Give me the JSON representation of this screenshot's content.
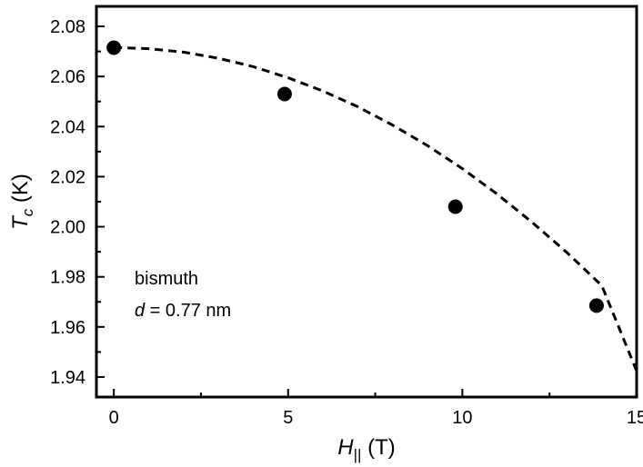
{
  "chart_data": {
    "type": "scatter",
    "x_axis": {
      "label_symbol": "H",
      "label_subscript": "||",
      "label_unit": " (T)",
      "range": [
        -0.5,
        15
      ],
      "ticks": [
        0,
        5,
        10,
        15
      ],
      "tick_labels": [
        "0",
        "5",
        "10",
        "15"
      ]
    },
    "y_axis": {
      "label_symbol": "T",
      "label_subscript": "c",
      "label_unit": " (K)",
      "range": [
        1.932,
        2.088
      ],
      "ticks": [
        1.94,
        1.96,
        1.98,
        2.0,
        2.02,
        2.04,
        2.06,
        2.08
      ],
      "tick_labels": [
        "1.94",
        "1.96",
        "1.98",
        "2.00",
        "2.02",
        "2.04",
        "2.06",
        "2.08"
      ]
    },
    "points": {
      "x": [
        0,
        4.9,
        9.8,
        13.85
      ],
      "y": [
        2.0715,
        2.053,
        2.008,
        1.9685
      ]
    },
    "fit_curve": {
      "style": "dashed",
      "x": [
        0,
        1,
        2,
        3,
        4,
        5,
        6,
        7,
        8,
        9,
        10,
        11,
        12,
        13,
        14,
        15
      ],
      "y": [
        2.0716,
        2.0711,
        2.0697,
        2.0673,
        2.0639,
        2.0595,
        2.0542,
        2.0479,
        2.0406,
        2.0324,
        2.0232,
        2.013,
        2.0018,
        1.9897,
        1.9765,
        1.9424
      ]
    },
    "annotation": {
      "line1": "bismuth",
      "symbol": "d",
      "equals": " = ",
      "value": "0.77",
      "unit": " nm"
    },
    "grid": false,
    "legend": "none"
  }
}
